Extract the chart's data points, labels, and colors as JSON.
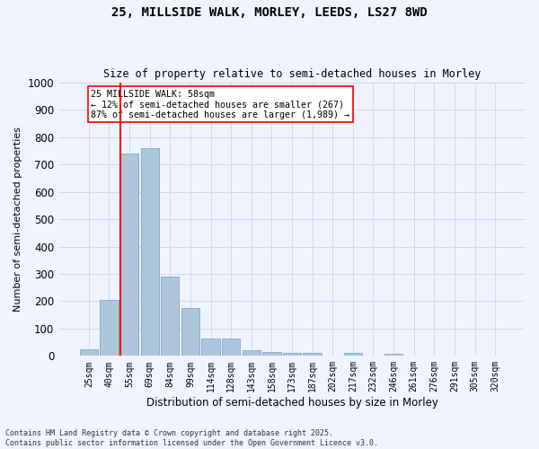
{
  "title_line1": "25, MILLSIDE WALK, MORLEY, LEEDS, LS27 8WD",
  "title_line2": "Size of property relative to semi-detached houses in Morley",
  "xlabel": "Distribution of semi-detached houses by size in Morley",
  "ylabel": "Number of semi-detached properties",
  "bin_labels": [
    "25sqm",
    "40sqm",
    "55sqm",
    "69sqm",
    "84sqm",
    "99sqm",
    "114sqm",
    "128sqm",
    "143sqm",
    "158sqm",
    "173sqm",
    "187sqm",
    "202sqm",
    "217sqm",
    "232sqm",
    "246sqm",
    "261sqm",
    "276sqm",
    "291sqm",
    "305sqm",
    "320sqm"
  ],
  "bar_heights": [
    25,
    205,
    740,
    760,
    290,
    175,
    65,
    65,
    20,
    15,
    12,
    12,
    0,
    10,
    0,
    8,
    0,
    0,
    0,
    0,
    0
  ],
  "bar_color": "#aec6dc",
  "bar_edgecolor": "#7aaac8",
  "grid_color": "#d0daea",
  "vline_color": "red",
  "annotation_text": "25 MILLSIDE WALK: 58sqm\n← 12% of semi-detached houses are smaller (267)\n87% of semi-detached houses are larger (1,989) →",
  "annotation_box_color": "white",
  "annotation_box_edgecolor": "red",
  "ylim": [
    0,
    1000
  ],
  "yticks": [
    0,
    100,
    200,
    300,
    400,
    500,
    600,
    700,
    800,
    900,
    1000
  ],
  "footer_line1": "Contains HM Land Registry data © Crown copyright and database right 2025.",
  "footer_line2": "Contains public sector information licensed under the Open Government Licence v3.0.",
  "bg_color": "#f0f4ff"
}
